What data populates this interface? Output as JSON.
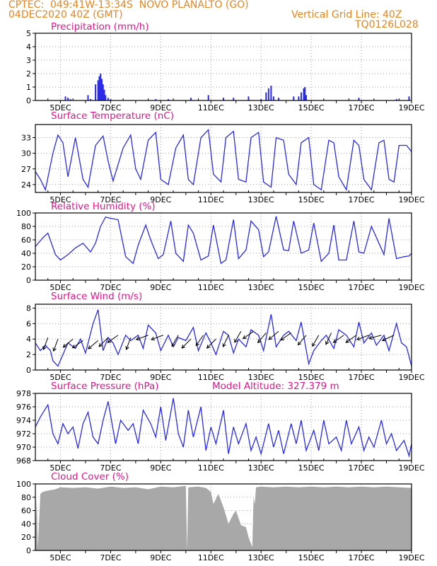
{
  "header": {
    "line1_left": "CPTEC:  049:41W-13:34S  NOVO PLANALTO (GO)",
    "line2_left": "04DEC2020 40Z (GMT)",
    "line2_right": "Vertical Grid Line: 40Z",
    "line3_right": "TQ0126L028"
  },
  "x_ticks": [
    "5DEC",
    "7DEC",
    "9DEC",
    "11DEC",
    "13DEC",
    "15DEC",
    "17DEC",
    "19DEC"
  ],
  "colors": {
    "series": "#2a2ae6",
    "cloud": "#a8a8a8",
    "title": "#e0188c",
    "header": "#e8841a"
  },
  "chart_data": [
    {
      "type": "bar",
      "title": "Precipitation (mm/h)",
      "ylim": [
        0,
        5
      ],
      "yticks": [
        0,
        1,
        2,
        3,
        4,
        5
      ],
      "x_unit": "day_of_december",
      "x": [
        5.2,
        5.3,
        5.4,
        6.1,
        6.2,
        6.4,
        6.5,
        6.55,
        6.6,
        6.65,
        6.7,
        6.75,
        6.8,
        6.9,
        7.0,
        8.8,
        9.3,
        10.2,
        10.9,
        11.5,
        11.9,
        12.5,
        13.0,
        13.2,
        13.3,
        13.4,
        13.5,
        13.7,
        14.3,
        14.5,
        14.6,
        14.7,
        14.75,
        14.8,
        16.9,
        18.4,
        18.9
      ],
      "values": [
        0.3,
        0.2,
        0.1,
        0.4,
        0.1,
        1.2,
        1.5,
        1.8,
        2.0,
        1.6,
        1.2,
        0.8,
        0.4,
        0.2,
        0.1,
        0.1,
        0.1,
        0.2,
        0.4,
        0.2,
        0.2,
        0.3,
        0.1,
        0.6,
        0.9,
        1.1,
        0.3,
        0.2,
        0.3,
        0.3,
        0.6,
        0.9,
        1.0,
        0.4,
        0.2,
        0.1,
        0.3
      ]
    },
    {
      "type": "line",
      "title": "Surface Temperature (nC)",
      "ylim": [
        22.5,
        35.5
      ],
      "yticks": [
        24,
        27,
        30,
        33
      ],
      "x_unit": "day_of_december",
      "x": [
        4.0,
        4.2,
        4.4,
        4.7,
        4.9,
        5.1,
        5.3,
        5.6,
        5.9,
        6.1,
        6.4,
        6.7,
        6.9,
        7.1,
        7.5,
        7.8,
        8.0,
        8.2,
        8.5,
        8.8,
        9.0,
        9.3,
        9.6,
        9.9,
        10.1,
        10.3,
        10.6,
        10.9,
        11.1,
        11.4,
        11.6,
        11.9,
        12.1,
        12.4,
        12.6,
        12.9,
        13.1,
        13.4,
        13.6,
        13.9,
        14.1,
        14.4,
        14.6,
        14.9,
        15.1,
        15.4,
        15.7,
        15.9,
        16.1,
        16.4,
        16.7,
        16.9,
        17.1,
        17.4,
        17.7,
        17.9,
        18.1,
        18.3,
        18.5,
        18.8,
        19.0
      ],
      "values": [
        26.5,
        25,
        23,
        30,
        33.5,
        32,
        25.5,
        33,
        25,
        23.5,
        31.5,
        33.3,
        28.5,
        24.7,
        31,
        33.5,
        27,
        25,
        32.5,
        34,
        25,
        24,
        31,
        33.5,
        25,
        24,
        33,
        34.5,
        26,
        24.5,
        33,
        34.2,
        25,
        24.5,
        33,
        34,
        24.5,
        23.5,
        33,
        32.5,
        26,
        24,
        32,
        33,
        24,
        23,
        32.5,
        32,
        25.5,
        23,
        32.5,
        31.5,
        25,
        23,
        32,
        32.5,
        25,
        24.5,
        31.5,
        31.5,
        30.3
      ]
    },
    {
      "type": "line",
      "title": "Relative Humidity (%)",
      "ylim": [
        0,
        100
      ],
      "yticks": [
        0,
        20,
        40,
        60,
        80,
        100
      ],
      "x_unit": "day_of_december",
      "x": [
        4.0,
        4.3,
        4.5,
        4.8,
        5.0,
        5.3,
        5.6,
        5.9,
        6.2,
        6.4,
        6.6,
        6.8,
        7.0,
        7.3,
        7.6,
        7.9,
        8.1,
        8.4,
        8.6,
        8.9,
        9.1,
        9.4,
        9.6,
        9.9,
        10.1,
        10.3,
        10.6,
        10.9,
        11.1,
        11.4,
        11.6,
        11.9,
        12.1,
        12.4,
        12.6,
        12.9,
        13.1,
        13.3,
        13.6,
        13.9,
        14.1,
        14.3,
        14.6,
        14.9,
        15.1,
        15.4,
        15.7,
        15.9,
        16.1,
        16.4,
        16.7,
        16.9,
        17.1,
        17.4,
        17.7,
        17.9,
        18.1,
        18.4,
        18.7,
        18.9,
        19.0
      ],
      "values": [
        50,
        63,
        70,
        38,
        30,
        38,
        48,
        55,
        42,
        55,
        80,
        94,
        92,
        90,
        35,
        25,
        52,
        82,
        60,
        32,
        38,
        88,
        40,
        28,
        82,
        70,
        30,
        36,
        82,
        25,
        30,
        90,
        32,
        45,
        88,
        75,
        35,
        42,
        95,
        45,
        44,
        88,
        40,
        45,
        85,
        28,
        40,
        82,
        30,
        30,
        88,
        42,
        40,
        80,
        55,
        38,
        92,
        32,
        35,
        36,
        40
      ]
    },
    {
      "type": "line",
      "title": "Surface Wind (m/s)",
      "ylim": [
        0,
        8.5
      ],
      "yticks": [
        0,
        2,
        4,
        6,
        8
      ],
      "x_unit": "day_of_december",
      "x": [
        4.0,
        4.2,
        4.4,
        4.6,
        4.7,
        4.9,
        5.1,
        5.3,
        5.6,
        5.8,
        6.0,
        6.3,
        6.5,
        6.7,
        6.9,
        7.1,
        7.3,
        7.6,
        7.8,
        8.1,
        8.3,
        8.5,
        8.8,
        9.0,
        9.3,
        9.5,
        9.7,
        10.0,
        10.3,
        10.5,
        10.8,
        11.0,
        11.2,
        11.5,
        11.7,
        11.9,
        12.1,
        12.4,
        12.6,
        12.9,
        13.1,
        13.4,
        13.6,
        13.9,
        14.1,
        14.4,
        14.6,
        14.9,
        15.1,
        15.4,
        15.6,
        15.9,
        16.1,
        16.4,
        16.7,
        16.9,
        17.1,
        17.4,
        17.6,
        17.9,
        18.1,
        18.4,
        18.6,
        18.8,
        19.0
      ],
      "values": [
        3.5,
        2.5,
        3.2,
        2.5,
        1.2,
        0.5,
        2.0,
        3.5,
        2.8,
        4.0,
        2.2,
        6.0,
        7.8,
        2.5,
        4.2,
        3.5,
        2.0,
        4.5,
        3.8,
        4.5,
        2.8,
        5.8,
        4.8,
        2.5,
        4.5,
        3.0,
        4.2,
        3.8,
        5.5,
        2.5,
        4.8,
        3.5,
        2.0,
        5.0,
        4.5,
        2.2,
        4.0,
        3.0,
        5.2,
        4.5,
        2.5,
        7.2,
        3.0,
        4.5,
        5.0,
        3.8,
        6.2,
        0.8,
        2.5,
        3.8,
        4.5,
        2.8,
        5.2,
        4.5,
        3.0,
        6.2,
        3.5,
        4.8,
        3.2,
        4.5,
        2.5,
        6.0,
        3.5,
        3.0,
        0.5
      ],
      "arrows_x": [
        4.5,
        4.9,
        5.5,
        5.9,
        6.5,
        6.9,
        7.3,
        7.8,
        8.5,
        9.1,
        9.7,
        10.2,
        10.7,
        11.2,
        11.7,
        12.2,
        12.7,
        13.2,
        13.7,
        14.2,
        14.8,
        15.3,
        15.8,
        16.3,
        16.8,
        17.3,
        17.8,
        18.3
      ],
      "arrows_y": [
        4.2,
        4.0,
        4.0,
        3.8,
        3.8,
        4.2,
        4.5,
        4.2,
        4.5,
        4.5,
        4.5,
        4.0,
        4.5,
        4.0,
        4.5,
        5.0,
        5.0,
        4.8,
        5.0,
        4.8,
        4.5,
        4.5,
        4.8,
        4.5,
        4.5,
        4.5,
        4.5,
        4.5
      ],
      "arrows_dir": [
        250,
        250,
        220,
        215,
        220,
        225,
        215,
        250,
        200,
        200,
        240,
        225,
        235,
        225,
        245,
        240,
        215,
        230,
        220,
        215,
        230,
        240,
        245,
        215,
        215,
        200,
        195,
        205
      ]
    },
    {
      "type": "line",
      "title": "Surface Pressure (hPa)",
      "annotation": "Model Altitude: 327.379  m",
      "ylim": [
        968,
        978
      ],
      "yticks": [
        968,
        970,
        972,
        974,
        976,
        978
      ],
      "x_unit": "day_of_december",
      "x": [
        4.0,
        4.2,
        4.5,
        4.7,
        4.9,
        5.1,
        5.3,
        5.5,
        5.7,
        5.9,
        6.1,
        6.3,
        6.5,
        6.7,
        6.9,
        7.2,
        7.4,
        7.7,
        7.9,
        8.1,
        8.3,
        8.6,
        8.8,
        9.0,
        9.2,
        9.5,
        9.7,
        9.9,
        10.1,
        10.3,
        10.6,
        10.8,
        11.0,
        11.2,
        11.5,
        11.7,
        11.9,
        12.1,
        12.4,
        12.6,
        12.8,
        13.0,
        13.3,
        13.5,
        13.7,
        13.9,
        14.2,
        14.4,
        14.6,
        14.8,
        15.1,
        15.3,
        15.5,
        15.7,
        16.0,
        16.2,
        16.4,
        16.6,
        16.9,
        17.1,
        17.3,
        17.5,
        17.8,
        18.0,
        18.2,
        18.4,
        18.7,
        18.9,
        19.0
      ],
      "values": [
        973,
        974.5,
        976.3,
        972,
        970.5,
        973.5,
        972,
        973,
        969.8,
        973.5,
        975.2,
        971.5,
        970.5,
        974,
        976.8,
        970.5,
        974,
        972.5,
        973.5,
        970.5,
        975.5,
        973.5,
        971.5,
        976,
        971,
        977.3,
        972,
        970,
        975.5,
        971.5,
        976,
        969.5,
        973,
        970.5,
        975.5,
        969,
        973,
        970.5,
        973.5,
        969.5,
        971.5,
        969,
        973.5,
        970,
        972.5,
        969,
        973.5,
        970.5,
        974,
        969.5,
        972.5,
        969.5,
        974,
        970.5,
        971.5,
        969.5,
        974,
        970.5,
        973,
        969.5,
        971.5,
        970,
        974,
        970.5,
        972,
        969.5,
        971,
        968.7,
        970.5
      ]
    },
    {
      "type": "area",
      "title": "Cloud Cover (%)",
      "ylim": [
        0,
        100
      ],
      "yticks": [
        0,
        20,
        40,
        60,
        80,
        100
      ],
      "x_unit": "day_of_december",
      "x": [
        4.0,
        4.05,
        4.1,
        4.2,
        4.3,
        4.5,
        4.8,
        5.0,
        5.5,
        6.0,
        6.5,
        7.0,
        7.5,
        8.0,
        8.5,
        9.0,
        9.5,
        10.0,
        10.05,
        10.1,
        10.5,
        10.8,
        11.0,
        11.1,
        11.3,
        11.5,
        11.7,
        11.9,
        12.0,
        12.2,
        12.4,
        12.5,
        12.6,
        12.65,
        12.7,
        12.75,
        12.8,
        13.0,
        13.5,
        14.0,
        14.5,
        15.0,
        15.5,
        16.0,
        16.5,
        17.0,
        17.5,
        18.0,
        18.5,
        19.0
      ],
      "values": [
        20,
        80,
        4,
        85,
        88,
        90,
        92,
        95,
        94,
        95,
        93,
        96,
        94,
        95,
        92,
        96,
        95,
        97,
        0,
        95,
        96,
        94,
        88,
        70,
        85,
        65,
        40,
        55,
        60,
        38,
        35,
        20,
        10,
        5,
        80,
        70,
        95,
        96,
        95,
        96,
        95,
        96,
        95,
        96,
        95,
        96,
        95,
        96,
        95,
        94
      ]
    }
  ]
}
